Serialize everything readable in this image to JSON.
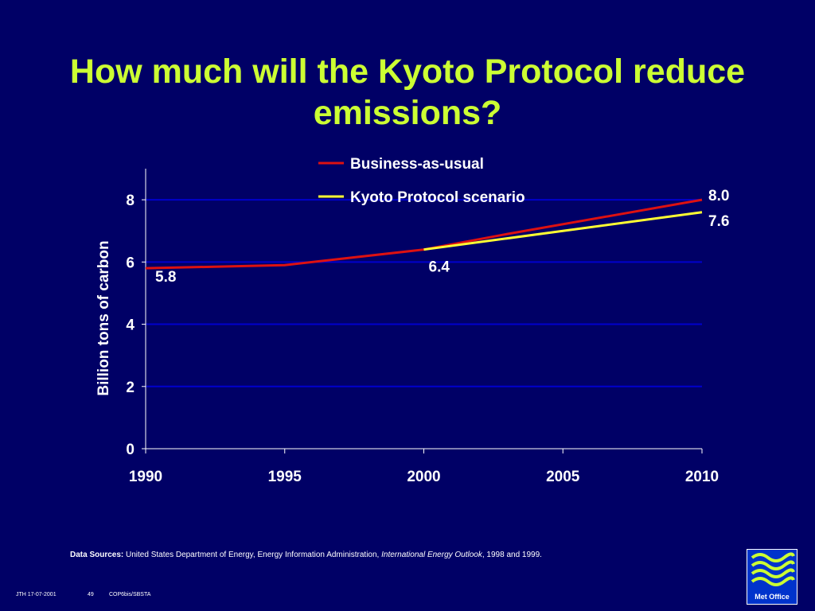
{
  "slide": {
    "title_line1": "How much will the Kyoto Protocol reduce",
    "title_line2": "emissions?",
    "source_label": "Data Sources:",
    "source_text": " United States Department of Energy, Energy Information Administration, ",
    "source_italic": "International Energy Outlook",
    "source_tail": ", 1998 and 1999.",
    "footer_left": "JTH 17-07-2001",
    "footer_page": "49",
    "footer_right": "COP6bis/SBSTA",
    "logo_text": "Met Office"
  },
  "colors": {
    "background": "#000066",
    "title": "#ccff33",
    "business_as_usual": "#dd1111",
    "kyoto": "#ffff33",
    "gridline": "#0000cc"
  },
  "chart_data": {
    "type": "line",
    "title": "",
    "xlabel": "",
    "ylabel": "Billion tons of carbon",
    "xlim": [
      1990,
      2010
    ],
    "ylim": [
      0,
      9
    ],
    "x_ticks": [
      "1990",
      "1995",
      "2000",
      "2005",
      "2010"
    ],
    "y_ticks": [
      "0",
      "2",
      "4",
      "6",
      "8"
    ],
    "grid": true,
    "legend_position": "top-center",
    "series": [
      {
        "name": "Business-as-usual",
        "color": "#dd1111",
        "points": [
          [
            1990,
            5.8
          ],
          [
            1995,
            5.9
          ],
          [
            2000,
            6.4
          ],
          [
            2003,
            6.9
          ],
          [
            2010,
            8.0
          ]
        ]
      },
      {
        "name": "Kyoto Protocol scenario",
        "color": "#ffff33",
        "points": [
          [
            2000,
            6.4
          ],
          [
            2010,
            7.6
          ]
        ]
      }
    ],
    "annotations": [
      {
        "text": "5.8",
        "x": 1990,
        "y": 5.8
      },
      {
        "text": "6.4",
        "x": 2000,
        "y": 6.4
      },
      {
        "text": "8.0",
        "x": 2010,
        "y": 8.0
      },
      {
        "text": "7.6",
        "x": 2010,
        "y": 7.6
      }
    ]
  }
}
